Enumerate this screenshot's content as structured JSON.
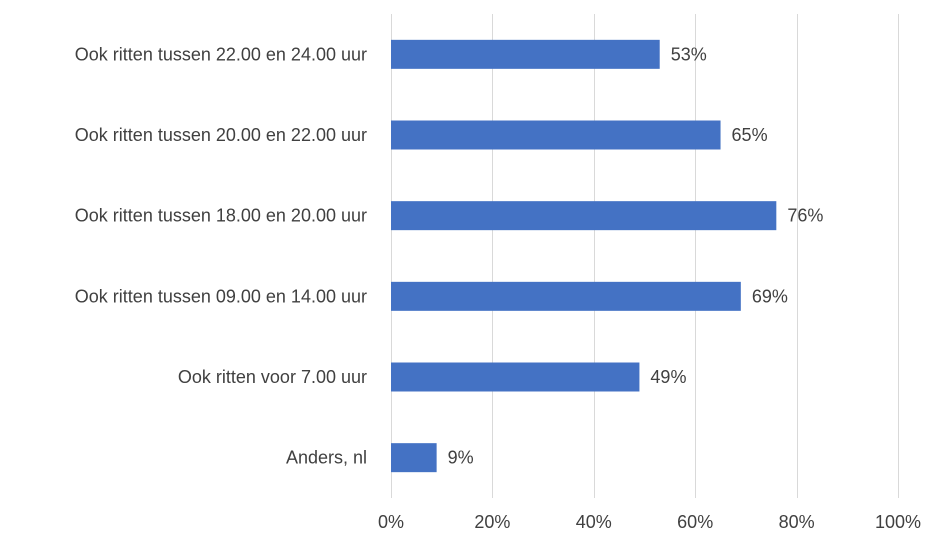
{
  "chart_data": {
    "type": "bar",
    "orientation": "horizontal",
    "categories": [
      "Ook ritten tussen 22.00 en 24.00 uur",
      "Ook ritten tussen 20.00 en 22.00 uur",
      "Ook ritten tussen 18.00 en 20.00 uur",
      "Ook ritten tussen 09.00 en 14.00 uur",
      "Ook ritten voor 7.00 uur",
      "Anders, nl"
    ],
    "values": [
      53,
      65,
      76,
      69,
      49,
      9
    ],
    "value_labels": [
      "53%",
      "65%",
      "76%",
      "69%",
      "49%",
      "9%"
    ],
    "xlim": [
      0,
      100
    ],
    "x_ticks": [
      0,
      20,
      40,
      60,
      80,
      100
    ],
    "x_tick_labels": [
      "0%",
      "20%",
      "40%",
      "60%",
      "80%",
      "100%"
    ],
    "title": "",
    "xlabel": "",
    "ylabel": "",
    "grid": "vertical",
    "legend": "none",
    "bar_color": "#4472c4"
  }
}
